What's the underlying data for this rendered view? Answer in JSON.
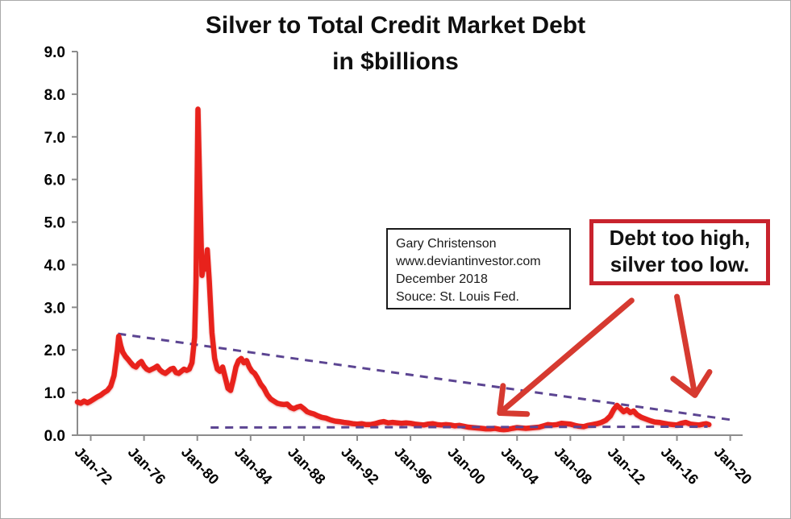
{
  "title": {
    "line1": "Silver to Total Credit Market Debt",
    "line2": "in $billions"
  },
  "source_box": {
    "lines": [
      "Gary Christenson",
      "www.deviantinvestor.com",
      "December 2018",
      "Souce: St. Louis Fed."
    ]
  },
  "callout": {
    "lines": [
      "Debt too high,",
      "silver too low."
    ]
  },
  "colors": {
    "series": "#e8221c",
    "trendline": "#5c4592",
    "arrow": "#d63a30",
    "callout_border": "#c8232d",
    "source_border": "#1a1a1a",
    "axis": "#8c8c8c",
    "text": "#000000",
    "background": "#ffffff"
  },
  "chart_data": {
    "type": "line",
    "title": "Silver to Total Credit Market Debt in $billions",
    "xlabel": "",
    "ylabel": "",
    "xlim": [
      1971,
      2020.93
    ],
    "ylim": [
      0,
      9
    ],
    "grid": false,
    "legend": "none",
    "x_tick_years": [
      1972,
      1976,
      1980,
      1984,
      1988,
      1992,
      1996,
      2000,
      2004,
      2008,
      2012,
      2016,
      2020
    ],
    "x_tick_labels": [
      "Jan-72",
      "Jan-76",
      "Jan-80",
      "Jan-84",
      "Jan-88",
      "Jan-92",
      "Jan-96",
      "Jan-00",
      "Jan-04",
      "Jan-08",
      "Jan-12",
      "Jan-16",
      "Jan-20"
    ],
    "y_tick_labels": [
      "0.0",
      "1.0",
      "2.0",
      "3.0",
      "4.0",
      "5.0",
      "6.0",
      "7.0",
      "8.0",
      "9.0"
    ],
    "series": [
      {
        "name": "silver-to-total-credit-market-debt-ratio",
        "points": [
          [
            1971.0,
            0.78
          ],
          [
            1971.25,
            0.75
          ],
          [
            1971.5,
            0.8
          ],
          [
            1971.75,
            0.76
          ],
          [
            1972.0,
            0.8
          ],
          [
            1972.25,
            0.85
          ],
          [
            1972.5,
            0.9
          ],
          [
            1972.75,
            0.94
          ],
          [
            1973.0,
            1.0
          ],
          [
            1973.25,
            1.05
          ],
          [
            1973.5,
            1.15
          ],
          [
            1973.75,
            1.4
          ],
          [
            1974.0,
            2.0
          ],
          [
            1974.1,
            2.32
          ],
          [
            1974.25,
            2.1
          ],
          [
            1974.4,
            1.95
          ],
          [
            1974.6,
            1.85
          ],
          [
            1974.8,
            1.78
          ],
          [
            1975.0,
            1.7
          ],
          [
            1975.2,
            1.63
          ],
          [
            1975.4,
            1.6
          ],
          [
            1975.6,
            1.68
          ],
          [
            1975.8,
            1.73
          ],
          [
            1976.0,
            1.62
          ],
          [
            1976.2,
            1.55
          ],
          [
            1976.4,
            1.52
          ],
          [
            1976.6,
            1.55
          ],
          [
            1976.8,
            1.58
          ],
          [
            1977.0,
            1.62
          ],
          [
            1977.2,
            1.53
          ],
          [
            1977.4,
            1.48
          ],
          [
            1977.6,
            1.45
          ],
          [
            1977.8,
            1.5
          ],
          [
            1978.0,
            1.55
          ],
          [
            1978.2,
            1.57
          ],
          [
            1978.4,
            1.47
          ],
          [
            1978.6,
            1.45
          ],
          [
            1978.8,
            1.5
          ],
          [
            1979.0,
            1.55
          ],
          [
            1979.2,
            1.52
          ],
          [
            1979.4,
            1.55
          ],
          [
            1979.6,
            1.7
          ],
          [
            1979.8,
            2.3
          ],
          [
            1979.9,
            3.6
          ],
          [
            1980.05,
            7.65
          ],
          [
            1980.2,
            5.6
          ],
          [
            1980.35,
            3.75
          ],
          [
            1980.5,
            4.1
          ],
          [
            1980.6,
            3.9
          ],
          [
            1980.75,
            4.35
          ],
          [
            1980.9,
            3.6
          ],
          [
            1981.1,
            2.4
          ],
          [
            1981.3,
            1.8
          ],
          [
            1981.5,
            1.55
          ],
          [
            1981.7,
            1.5
          ],
          [
            1981.9,
            1.6
          ],
          [
            1982.1,
            1.35
          ],
          [
            1982.3,
            1.1
          ],
          [
            1982.5,
            1.05
          ],
          [
            1982.7,
            1.3
          ],
          [
            1982.9,
            1.6
          ],
          [
            1983.1,
            1.75
          ],
          [
            1983.3,
            1.8
          ],
          [
            1983.5,
            1.7
          ],
          [
            1983.7,
            1.75
          ],
          [
            1983.9,
            1.6
          ],
          [
            1984.1,
            1.5
          ],
          [
            1984.3,
            1.45
          ],
          [
            1984.5,
            1.35
          ],
          [
            1984.75,
            1.2
          ],
          [
            1985.0,
            1.1
          ],
          [
            1985.25,
            0.95
          ],
          [
            1985.5,
            0.85
          ],
          [
            1985.75,
            0.8
          ],
          [
            1986.0,
            0.75
          ],
          [
            1986.25,
            0.73
          ],
          [
            1986.5,
            0.72
          ],
          [
            1986.75,
            0.73
          ],
          [
            1987.0,
            0.65
          ],
          [
            1987.25,
            0.62
          ],
          [
            1987.5,
            0.66
          ],
          [
            1987.75,
            0.68
          ],
          [
            1988.0,
            0.62
          ],
          [
            1988.25,
            0.55
          ],
          [
            1988.5,
            0.52
          ],
          [
            1988.75,
            0.5
          ],
          [
            1989.0,
            0.46
          ],
          [
            1989.33,
            0.42
          ],
          [
            1989.66,
            0.4
          ],
          [
            1990.0,
            0.36
          ],
          [
            1990.33,
            0.33
          ],
          [
            1990.66,
            0.32
          ],
          [
            1991.0,
            0.3
          ],
          [
            1991.33,
            0.29
          ],
          [
            1991.66,
            0.27
          ],
          [
            1992.0,
            0.26
          ],
          [
            1992.33,
            0.27
          ],
          [
            1992.66,
            0.25
          ],
          [
            1993.0,
            0.25
          ],
          [
            1993.33,
            0.27
          ],
          [
            1993.66,
            0.3
          ],
          [
            1994.0,
            0.32
          ],
          [
            1994.33,
            0.29
          ],
          [
            1994.66,
            0.3
          ],
          [
            1995.0,
            0.29
          ],
          [
            1995.33,
            0.28
          ],
          [
            1995.66,
            0.29
          ],
          [
            1996.0,
            0.28
          ],
          [
            1996.33,
            0.26
          ],
          [
            1996.66,
            0.25
          ],
          [
            1997.0,
            0.24
          ],
          [
            1997.33,
            0.26
          ],
          [
            1997.66,
            0.27
          ],
          [
            1998.0,
            0.25
          ],
          [
            1998.33,
            0.24
          ],
          [
            1998.66,
            0.25
          ],
          [
            1999.0,
            0.24
          ],
          [
            1999.33,
            0.22
          ],
          [
            1999.66,
            0.23
          ],
          [
            2000.0,
            0.21
          ],
          [
            2000.33,
            0.19
          ],
          [
            2000.66,
            0.18
          ],
          [
            2001.0,
            0.17
          ],
          [
            2001.33,
            0.16
          ],
          [
            2001.66,
            0.15
          ],
          [
            2002.0,
            0.15
          ],
          [
            2002.33,
            0.16
          ],
          [
            2002.66,
            0.14
          ],
          [
            2003.0,
            0.13
          ],
          [
            2003.33,
            0.14
          ],
          [
            2003.66,
            0.16
          ],
          [
            2004.0,
            0.18
          ],
          [
            2004.33,
            0.17
          ],
          [
            2004.66,
            0.16
          ],
          [
            2005.0,
            0.17
          ],
          [
            2005.33,
            0.18
          ],
          [
            2005.66,
            0.19
          ],
          [
            2006.0,
            0.22
          ],
          [
            2006.33,
            0.25
          ],
          [
            2006.66,
            0.24
          ],
          [
            2007.0,
            0.25
          ],
          [
            2007.33,
            0.28
          ],
          [
            2007.66,
            0.27
          ],
          [
            2008.0,
            0.26
          ],
          [
            2008.33,
            0.23
          ],
          [
            2008.66,
            0.21
          ],
          [
            2009.0,
            0.2
          ],
          [
            2009.33,
            0.23
          ],
          [
            2009.66,
            0.25
          ],
          [
            2010.0,
            0.27
          ],
          [
            2010.33,
            0.3
          ],
          [
            2010.66,
            0.35
          ],
          [
            2011.0,
            0.45
          ],
          [
            2011.25,
            0.6
          ],
          [
            2011.5,
            0.7
          ],
          [
            2011.75,
            0.63
          ],
          [
            2012.0,
            0.55
          ],
          [
            2012.25,
            0.6
          ],
          [
            2012.5,
            0.53
          ],
          [
            2012.75,
            0.57
          ],
          [
            2013.0,
            0.48
          ],
          [
            2013.33,
            0.42
          ],
          [
            2013.66,
            0.38
          ],
          [
            2014.0,
            0.34
          ],
          [
            2014.33,
            0.31
          ],
          [
            2014.66,
            0.3
          ],
          [
            2015.0,
            0.28
          ],
          [
            2015.33,
            0.26
          ],
          [
            2015.66,
            0.25
          ],
          [
            2016.0,
            0.24
          ],
          [
            2016.33,
            0.28
          ],
          [
            2016.66,
            0.3
          ],
          [
            2017.0,
            0.26
          ],
          [
            2017.33,
            0.25
          ],
          [
            2017.66,
            0.24
          ],
          [
            2018.0,
            0.26
          ],
          [
            2018.2,
            0.27
          ],
          [
            2018.4,
            0.25
          ]
        ]
      }
    ],
    "trendlines": [
      {
        "name": "upper-declining-trendline",
        "from": [
          1974.05,
          2.38
        ],
        "to": [
          2020.3,
          0.35
        ]
      },
      {
        "name": "lower-flat-trendline",
        "from": [
          1981.0,
          0.18
        ],
        "to": [
          2018.3,
          0.2
        ]
      }
    ],
    "arrows": [
      {
        "name": "arrow-to-2002-low",
        "from": [
          2012.6,
          3.16
        ],
        "to": [
          2002.7,
          0.52
        ]
      },
      {
        "name": "arrow-to-2017-end",
        "from": [
          2016.0,
          3.25
        ],
        "to": [
          2017.35,
          0.94
        ]
      }
    ]
  }
}
